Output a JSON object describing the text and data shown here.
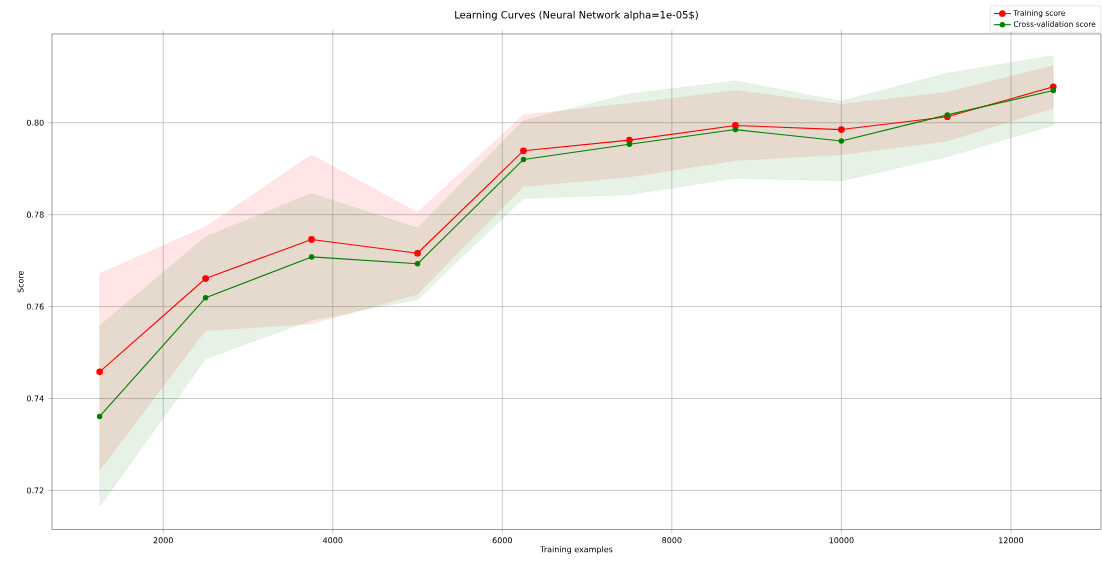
{
  "chart_data": {
    "type": "line",
    "title": "Learning Curves (Neural Network alpha=1e-05$)",
    "xlabel": "Training examples",
    "ylabel": "Score",
    "x": [
      1250,
      2500,
      3750,
      5000,
      6250,
      7500,
      8750,
      10000,
      11250,
      12500
    ],
    "series": [
      {
        "name": "Training score",
        "color": "#ff0000",
        "values": [
          0.7458,
          0.7661,
          0.7746,
          0.7716,
          0.7939,
          0.7962,
          0.7994,
          0.7985,
          0.8013,
          0.8078
        ],
        "lower": [
          0.7244,
          0.7548,
          0.7562,
          0.7627,
          0.7861,
          0.7882,
          0.7918,
          0.793,
          0.796,
          0.8032
        ],
        "upper": [
          0.7672,
          0.7774,
          0.793,
          0.7805,
          0.8017,
          0.8042,
          0.807,
          0.804,
          0.8066,
          0.8124
        ]
      },
      {
        "name": "Cross-validation score",
        "color": "#008000",
        "values": [
          0.7361,
          0.7619,
          0.7708,
          0.7693,
          0.792,
          0.7953,
          0.7985,
          0.796,
          0.8017,
          0.807
        ],
        "lower": [
          0.7164,
          0.7486,
          0.757,
          0.7615,
          0.7835,
          0.7843,
          0.7879,
          0.7873,
          0.7926,
          0.7994
        ],
        "upper": [
          0.7558,
          0.7752,
          0.7846,
          0.7771,
          0.8005,
          0.8063,
          0.8091,
          0.8047,
          0.8108,
          0.8146
        ]
      }
    ],
    "xlim": [
      687.5,
      13062.5
    ],
    "ylim": [
      0.7115,
      0.8193
    ],
    "xticks": [
      2000,
      4000,
      6000,
      8000,
      10000,
      12000
    ],
    "yticks": [
      {
        "value": 0.72,
        "label": "0.72"
      },
      {
        "value": 0.74,
        "label": "0.74"
      },
      {
        "value": 0.76,
        "label": "0.76"
      },
      {
        "value": 0.78,
        "label": "0.78"
      },
      {
        "value": 0.8,
        "label": "0.80"
      }
    ],
    "grid": true,
    "legend": "top right",
    "marker": "circle",
    "line_style": "solid"
  }
}
